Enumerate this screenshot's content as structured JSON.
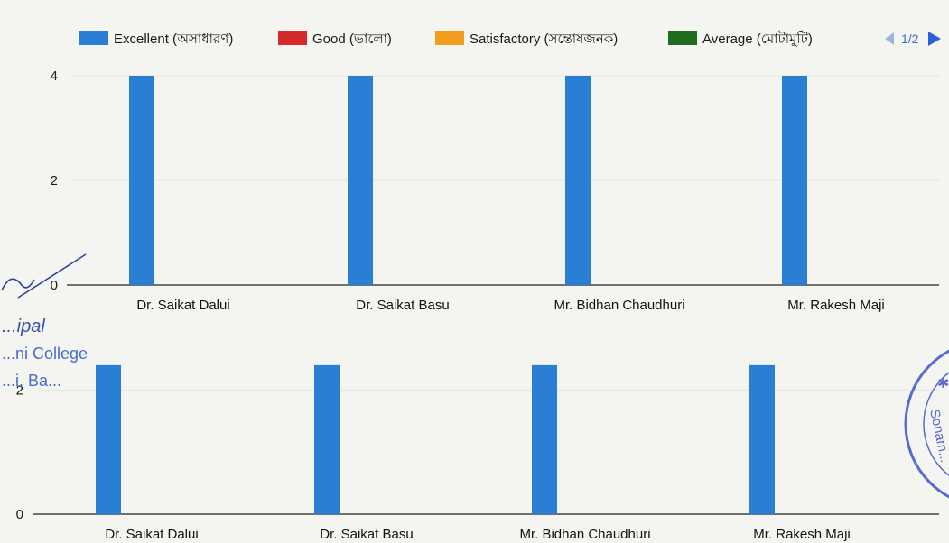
{
  "legend": {
    "items": [
      {
        "label": "Excellent (অসাধারণ)",
        "color": "#2a7fd4"
      },
      {
        "label": "Good (ভালো)",
        "color": "#d42a2a"
      },
      {
        "label": "Satisfactory (সন্তোষজনক)",
        "color": "#f09c1c"
      },
      {
        "label": "Average (মোটামুটি)",
        "color": "#1f6b1f"
      }
    ],
    "page_indicator": "1/2",
    "prev_icon": "triangle-left-icon",
    "next_icon": "triangle-right-icon"
  },
  "stamp": {
    "signature_text": "...ipal",
    "college_text": "...ni College",
    "place_text": "...i, Ba...",
    "seal_text": "Sonam..."
  },
  "chart_data": [
    {
      "type": "bar",
      "categories": [
        "Dr. Saikat Dalui",
        "Dr. Saikat Basu",
        "Mr. Bidhan Chaudhuri",
        "Mr. Rakesh Maji"
      ],
      "series": [
        {
          "name": "Excellent (অসাধারণ)",
          "values": [
            4,
            4,
            4,
            4
          ]
        }
      ],
      "yticks": [
        "0",
        "2",
        "4"
      ],
      "ylim": [
        0,
        4
      ],
      "grid": true,
      "legend": "top"
    },
    {
      "type": "bar",
      "categories": [
        "Dr. Saikat Dalui",
        "Dr. Saikat Basu",
        "Mr. Bidhan Chaudhuri",
        "Mr. Rakesh Maji"
      ],
      "series": [
        {
          "name": "Excellent (অসাধারণ)",
          "values": [
            2.4,
            2.4,
            2.4,
            2.4
          ]
        }
      ],
      "yticks": [
        "0",
        "2"
      ],
      "ylim": [
        0,
        2.5
      ],
      "grid": true,
      "legend": "none"
    }
  ]
}
